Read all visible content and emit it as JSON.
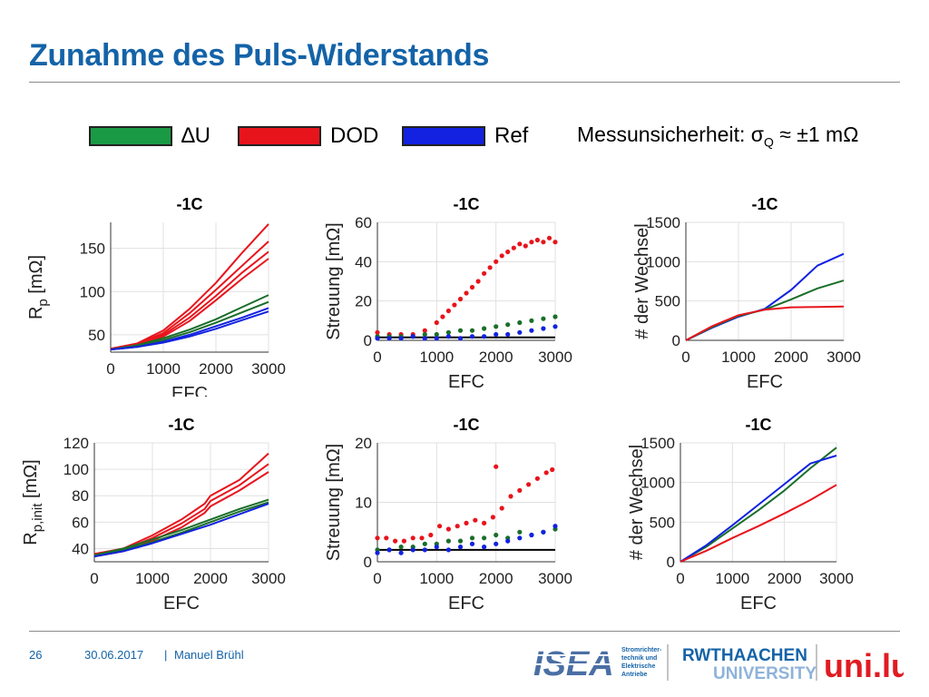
{
  "slide": {
    "title": "Zunahme des Puls-Widerstands",
    "page_number": "26",
    "date": "30.06.2017",
    "separator": "|",
    "author": "Manuel Brühl"
  },
  "legend": {
    "items": [
      {
        "label": "∆U",
        "color": "#1a9a45"
      },
      {
        "label": "DOD",
        "color": "#e8141c"
      },
      {
        "label": "Ref",
        "color": "#1222e0"
      }
    ],
    "uncertainty_prefix": "Messunsicherheit: σ",
    "uncertainty_sub": "Q",
    "uncertainty_suffix": " ≈ ±1 mΩ"
  },
  "logos": {
    "isea_text": "ISEA",
    "isea_sub": [
      "Stromrichter-",
      "technik und",
      "Elektrische",
      "Antriebe"
    ],
    "rwth_text": "RWTHAACHEN",
    "rwth_sub": "UNIVERSITY",
    "unilu_text": "uni.lu"
  },
  "colors": {
    "green": "#1a6e2a",
    "red": "#e8141c",
    "blue": "#1222e0",
    "title": "#1463a8"
  },
  "chart_data": [
    {
      "id": "rp",
      "type": "line",
      "title": "-1C",
      "xlabel": "EFC",
      "ylabel_main": "R",
      "ylabel_sub": "p",
      "ylabel_unit": "[mΩ]",
      "xlim": [
        0,
        3000
      ],
      "ylim": [
        30,
        180
      ],
      "xticks": [
        0,
        1000,
        2000,
        3000
      ],
      "yticks": [
        50,
        100,
        150
      ],
      "grid": true,
      "series": [
        {
          "group": "DOD",
          "color": "red",
          "x": [
            0,
            500,
            1000,
            1500,
            2000,
            2500,
            3000
          ],
          "y": [
            34,
            40,
            55,
            80,
            110,
            145,
            178
          ]
        },
        {
          "group": "DOD",
          "color": "red",
          "x": [
            0,
            500,
            1000,
            1500,
            2000,
            2500,
            3000
          ],
          "y": [
            34,
            39,
            52,
            75,
            102,
            130,
            158
          ]
        },
        {
          "group": "DOD",
          "color": "red",
          "x": [
            0,
            500,
            1000,
            1500,
            2000,
            2500,
            3000
          ],
          "y": [
            33,
            38,
            50,
            70,
            95,
            122,
            146
          ]
        },
        {
          "group": "DOD",
          "color": "red",
          "x": [
            0,
            500,
            1000,
            1500,
            2000,
            2500,
            3000
          ],
          "y": [
            33,
            37,
            48,
            66,
            90,
            115,
            138
          ]
        },
        {
          "group": "ΔU",
          "color": "green",
          "x": [
            0,
            500,
            1000,
            1500,
            2000,
            2500,
            3000
          ],
          "y": [
            33,
            38,
            46,
            56,
            68,
            82,
            96
          ]
        },
        {
          "group": "ΔU",
          "color": "green",
          "x": [
            0,
            500,
            1000,
            1500,
            2000,
            2500,
            3000
          ],
          "y": [
            33,
            37,
            44,
            53,
            64,
            76,
            88
          ]
        },
        {
          "group": "Ref",
          "color": "blue",
          "x": [
            0,
            500,
            1000,
            1500,
            2000,
            2500,
            3000
          ],
          "y": [
            33,
            36,
            42,
            50,
            60,
            70,
            81
          ]
        },
        {
          "group": "Ref",
          "color": "blue",
          "x": [
            0,
            500,
            1000,
            1500,
            2000,
            2500,
            3000
          ],
          "y": [
            33,
            36,
            41,
            48,
            57,
            67,
            77
          ]
        }
      ]
    },
    {
      "id": "streuung1",
      "type": "scatter",
      "title": "-1C",
      "xlabel": "EFC",
      "ylabel_main": "Streuung [mΩ]",
      "xlim": [
        0,
        3000
      ],
      "ylim": [
        0,
        60
      ],
      "xticks": [
        0,
        1000,
        2000,
        3000
      ],
      "yticks": [
        0,
        20,
        40,
        60
      ],
      "grid": true,
      "reference_line": 1.5,
      "series": [
        {
          "group": "DOD",
          "color": "red",
          "x": [
            0,
            200,
            400,
            600,
            800,
            1000,
            1100,
            1200,
            1300,
            1400,
            1500,
            1600,
            1700,
            1800,
            1900,
            2000,
            2100,
            2200,
            2300,
            2400,
            2500,
            2600,
            2700,
            2800,
            2900,
            3000
          ],
          "y": [
            4,
            3,
            3,
            3,
            5,
            9,
            12,
            15,
            18,
            21,
            24,
            27,
            30,
            34,
            37,
            40,
            43,
            45,
            47,
            49,
            48,
            50,
            51,
            50,
            52,
            50
          ]
        },
        {
          "group": "ΔU",
          "color": "green",
          "x": [
            0,
            200,
            400,
            600,
            800,
            1000,
            1200,
            1400,
            1600,
            1800,
            2000,
            2200,
            2400,
            2600,
            2800,
            3000
          ],
          "y": [
            2,
            2,
            2,
            2,
            3,
            3,
            4,
            5,
            5,
            6,
            7,
            8,
            9,
            10,
            11,
            12
          ]
        },
        {
          "group": "Ref",
          "color": "blue",
          "x": [
            0,
            200,
            400,
            600,
            800,
            1000,
            1200,
            1400,
            1600,
            1800,
            2000,
            2200,
            2400,
            2600,
            2800,
            3000
          ],
          "y": [
            1,
            1,
            1,
            2,
            1,
            1,
            2,
            1,
            2,
            2,
            3,
            3,
            4,
            5,
            6,
            7
          ]
        }
      ]
    },
    {
      "id": "wechsel1",
      "type": "line",
      "title": "-1C",
      "xlabel": "EFC",
      "ylabel_main": "# der Wechsel",
      "xlim": [
        0,
        3000
      ],
      "ylim": [
        0,
        1500
      ],
      "xticks": [
        0,
        1000,
        2000,
        3000
      ],
      "yticks": [
        0,
        500,
        1000,
        1500
      ],
      "grid": true,
      "series": [
        {
          "group": "Ref",
          "color": "blue",
          "x": [
            0,
            500,
            1000,
            1500,
            2000,
            2500,
            3000
          ],
          "y": [
            0,
            160,
            300,
            400,
            640,
            950,
            1100
          ]
        },
        {
          "group": "ΔU",
          "color": "green",
          "x": [
            0,
            500,
            1000,
            1500,
            2000,
            2500,
            3000
          ],
          "y": [
            0,
            170,
            310,
            390,
            520,
            660,
            760
          ]
        },
        {
          "group": "DOD",
          "color": "red",
          "x": [
            0,
            500,
            1000,
            1500,
            2000,
            2500,
            3000
          ],
          "y": [
            0,
            180,
            320,
            390,
            420,
            425,
            430
          ]
        }
      ]
    },
    {
      "id": "rpinit",
      "type": "line",
      "title": "-1C",
      "xlabel": "EFC",
      "ylabel_main": "R",
      "ylabel_sub": "p,init",
      "ylabel_unit": "[mΩ]",
      "xlim": [
        0,
        3000
      ],
      "ylim": [
        30,
        120
      ],
      "xticks": [
        0,
        1000,
        2000,
        3000
      ],
      "yticks": [
        40,
        60,
        80,
        100,
        120
      ],
      "grid": true,
      "series": [
        {
          "group": "DOD",
          "color": "red",
          "x": [
            0,
            500,
            1000,
            1500,
            1900,
            2000,
            2500,
            3000
          ],
          "y": [
            36,
            40,
            50,
            62,
            74,
            80,
            92,
            112
          ]
        },
        {
          "group": "DOD",
          "color": "red",
          "x": [
            0,
            500,
            1000,
            1500,
            1900,
            2000,
            2500,
            3000
          ],
          "y": [
            35,
            39,
            48,
            59,
            70,
            76,
            88,
            104
          ]
        },
        {
          "group": "DOD",
          "color": "red",
          "x": [
            0,
            500,
            1000,
            1500,
            1900,
            2000,
            2500,
            3000
          ],
          "y": [
            34,
            38,
            46,
            56,
            67,
            72,
            84,
            98
          ]
        },
        {
          "group": "ΔU",
          "color": "green",
          "x": [
            0,
            500,
            1000,
            1500,
            2000,
            2500,
            3000
          ],
          "y": [
            35,
            40,
            47,
            54,
            62,
            70,
            77
          ]
        },
        {
          "group": "ΔU",
          "color": "green",
          "x": [
            0,
            500,
            1000,
            1500,
            2000,
            2500,
            3000
          ],
          "y": [
            34,
            39,
            45,
            52,
            60,
            68,
            75
          ]
        },
        {
          "group": "Ref",
          "color": "blue",
          "x": [
            0,
            500,
            1000,
            1500,
            2000,
            2500,
            3000
          ],
          "y": [
            34,
            38,
            44,
            51,
            58,
            66,
            74
          ]
        }
      ]
    },
    {
      "id": "streuung2",
      "type": "scatter",
      "title": "-1C",
      "xlabel": "EFC",
      "ylabel_main": "Streuung [mΩ]",
      "xlim": [
        0,
        3000
      ],
      "ylim": [
        0,
        20
      ],
      "xticks": [
        0,
        1000,
        2000,
        3000
      ],
      "yticks": [
        0,
        10,
        20
      ],
      "grid": true,
      "reference_line": 2,
      "series": [
        {
          "group": "DOD",
          "color": "red",
          "x": [
            0,
            150,
            300,
            450,
            600,
            750,
            900,
            1050,
            1200,
            1350,
            1500,
            1650,
            1800,
            1950,
            2000,
            2100,
            2250,
            2400,
            2550,
            2700,
            2850,
            2950
          ],
          "y": [
            4,
            4,
            3.5,
            3.5,
            4,
            4,
            4.5,
            6,
            5.5,
            6,
            6.5,
            7,
            6.5,
            7.5,
            16,
            9,
            11,
            12,
            13,
            14,
            15,
            15.5
          ]
        },
        {
          "group": "ΔU",
          "color": "green",
          "x": [
            0,
            200,
            400,
            600,
            800,
            1000,
            1200,
            1400,
            1600,
            1800,
            2000,
            2200,
            2400,
            2600,
            2800,
            3000
          ],
          "y": [
            2,
            2,
            2.5,
            2.5,
            3,
            3,
            3.5,
            3.5,
            4,
            4,
            4.5,
            4,
            5,
            4.5,
            5,
            5.5
          ]
        },
        {
          "group": "Ref",
          "color": "blue",
          "x": [
            0,
            200,
            400,
            600,
            800,
            1000,
            1200,
            1400,
            1600,
            1800,
            2000,
            2200,
            2400,
            2600,
            2800,
            3000
          ],
          "y": [
            1.5,
            2,
            1.5,
            2,
            2,
            2.5,
            2,
            2.5,
            3,
            2.5,
            3,
            3.5,
            4,
            4.5,
            5,
            6
          ]
        }
      ]
    },
    {
      "id": "wechsel2",
      "type": "line",
      "title": "-1C",
      "xlabel": "EFC",
      "ylabel_main": "# der Wechsel",
      "xlim": [
        0,
        3000
      ],
      "ylim": [
        0,
        1500
      ],
      "xticks": [
        0,
        1000,
        2000,
        3000
      ],
      "yticks": [
        0,
        500,
        1000,
        1500
      ],
      "grid": true,
      "series": [
        {
          "group": "ΔU",
          "color": "green",
          "x": [
            0,
            500,
            1000,
            1500,
            2000,
            2500,
            3000
          ],
          "y": [
            0,
            190,
            420,
            650,
            900,
            1180,
            1440
          ]
        },
        {
          "group": "Ref",
          "color": "blue",
          "x": [
            0,
            500,
            1000,
            1500,
            2000,
            2500,
            3000
          ],
          "y": [
            0,
            210,
            460,
            720,
            980,
            1240,
            1340
          ]
        },
        {
          "group": "DOD",
          "color": "red",
          "x": [
            0,
            500,
            1000,
            1500,
            2000,
            2500,
            3000
          ],
          "y": [
            0,
            140,
            300,
            450,
            610,
            780,
            970
          ]
        }
      ]
    }
  ]
}
